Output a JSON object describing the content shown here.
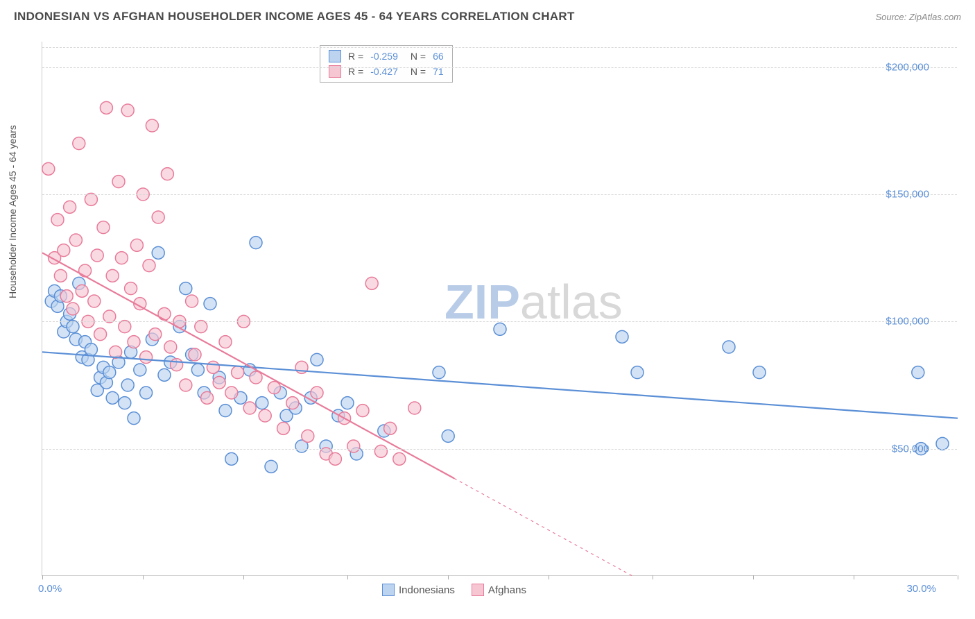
{
  "header": {
    "title": "INDONESIAN VS AFGHAN HOUSEHOLDER INCOME AGES 45 - 64 YEARS CORRELATION CHART",
    "source": "Source: ZipAtlas.com"
  },
  "chart": {
    "type": "scatter",
    "y_label": "Householder Income Ages 45 - 64 years",
    "watermark_a": "ZIP",
    "watermark_b": "atlas",
    "xlim": [
      0,
      30
    ],
    "ylim": [
      0,
      210000
    ],
    "x_tick_positions_pct": [
      0,
      3.3,
      6.6,
      10,
      13.3,
      16.6,
      20,
      23.3,
      26.6,
      30
    ],
    "x_range_labels": {
      "min": "0.0%",
      "max": "30.0%"
    },
    "y_ticks": [
      {
        "value": 50000,
        "label": "$50,000"
      },
      {
        "value": 100000,
        "label": "$100,000"
      },
      {
        "value": 150000,
        "label": "$150,000"
      },
      {
        "value": 200000,
        "label": "$200,000"
      }
    ],
    "grid_color": "#d8d8d8",
    "axis_color": "#cccccc",
    "background_color": "#ffffff",
    "point_radius": 9,
    "point_fill_opacity": 0.35,
    "point_stroke_width": 1.5,
    "series": [
      {
        "name": "Indonesians",
        "color": "#5b8fd6",
        "fill": "#bcd4f0",
        "R": "-0.259",
        "N": "66",
        "trendline": {
          "x1": 0,
          "y1": 88000,
          "x2": 30,
          "y2": 62000,
          "stroke_width": 2.2,
          "dash_after_x": null
        },
        "points": [
          [
            0.3,
            108000
          ],
          [
            0.4,
            112000
          ],
          [
            0.5,
            106000
          ],
          [
            0.6,
            110000
          ],
          [
            0.7,
            96000
          ],
          [
            0.8,
            100000
          ],
          [
            0.9,
            103000
          ],
          [
            1.0,
            98000
          ],
          [
            1.1,
            93000
          ],
          [
            1.2,
            115000
          ],
          [
            1.3,
            86000
          ],
          [
            1.4,
            92000
          ],
          [
            1.5,
            85000
          ],
          [
            1.6,
            89000
          ],
          [
            1.8,
            73000
          ],
          [
            1.9,
            78000
          ],
          [
            2.0,
            82000
          ],
          [
            2.1,
            76000
          ],
          [
            2.2,
            80000
          ],
          [
            2.3,
            70000
          ],
          [
            2.5,
            84000
          ],
          [
            2.7,
            68000
          ],
          [
            2.8,
            75000
          ],
          [
            2.9,
            88000
          ],
          [
            3.0,
            62000
          ],
          [
            3.2,
            81000
          ],
          [
            3.4,
            72000
          ],
          [
            3.6,
            93000
          ],
          [
            3.8,
            127000
          ],
          [
            4.0,
            79000
          ],
          [
            4.2,
            84000
          ],
          [
            4.5,
            98000
          ],
          [
            4.7,
            113000
          ],
          [
            4.9,
            87000
          ],
          [
            5.1,
            81000
          ],
          [
            5.3,
            72000
          ],
          [
            5.5,
            107000
          ],
          [
            5.8,
            78000
          ],
          [
            6.0,
            65000
          ],
          [
            6.2,
            46000
          ],
          [
            6.5,
            70000
          ],
          [
            6.8,
            81000
          ],
          [
            7.0,
            131000
          ],
          [
            7.2,
            68000
          ],
          [
            7.5,
            43000
          ],
          [
            7.8,
            72000
          ],
          [
            8.0,
            63000
          ],
          [
            8.3,
            66000
          ],
          [
            8.5,
            51000
          ],
          [
            8.8,
            70000
          ],
          [
            9.0,
            85000
          ],
          [
            9.3,
            51000
          ],
          [
            9.7,
            63000
          ],
          [
            10.0,
            68000
          ],
          [
            10.3,
            48000
          ],
          [
            11.2,
            57000
          ],
          [
            13.0,
            80000
          ],
          [
            13.3,
            55000
          ],
          [
            15.0,
            97000
          ],
          [
            19.0,
            94000
          ],
          [
            19.5,
            80000
          ],
          [
            22.5,
            90000
          ],
          [
            23.5,
            80000
          ],
          [
            28.7,
            80000
          ],
          [
            28.8,
            50000
          ],
          [
            29.5,
            52000
          ]
        ]
      },
      {
        "name": "Afghans",
        "color": "#e87b9a",
        "fill": "#f6c6d3",
        "R": "-0.427",
        "N": "71",
        "trendline": {
          "x1": 0,
          "y1": 127000,
          "x2": 30,
          "y2": -70000,
          "stroke_width": 2.2,
          "dash_after_x": 13.5
        },
        "points": [
          [
            0.2,
            160000
          ],
          [
            0.4,
            125000
          ],
          [
            0.5,
            140000
          ],
          [
            0.6,
            118000
          ],
          [
            0.7,
            128000
          ],
          [
            0.8,
            110000
          ],
          [
            0.9,
            145000
          ],
          [
            1.0,
            105000
          ],
          [
            1.1,
            132000
          ],
          [
            1.2,
            170000
          ],
          [
            1.3,
            112000
          ],
          [
            1.4,
            120000
          ],
          [
            1.5,
            100000
          ],
          [
            1.6,
            148000
          ],
          [
            1.7,
            108000
          ],
          [
            1.8,
            126000
          ],
          [
            1.9,
            95000
          ],
          [
            2.0,
            137000
          ],
          [
            2.1,
            184000
          ],
          [
            2.2,
            102000
          ],
          [
            2.3,
            118000
          ],
          [
            2.4,
            88000
          ],
          [
            2.5,
            155000
          ],
          [
            2.6,
            125000
          ],
          [
            2.7,
            98000
          ],
          [
            2.8,
            183000
          ],
          [
            2.9,
            113000
          ],
          [
            3.0,
            92000
          ],
          [
            3.1,
            130000
          ],
          [
            3.2,
            107000
          ],
          [
            3.3,
            150000
          ],
          [
            3.4,
            86000
          ],
          [
            3.5,
            122000
          ],
          [
            3.6,
            177000
          ],
          [
            3.7,
            95000
          ],
          [
            3.8,
            141000
          ],
          [
            4.0,
            103000
          ],
          [
            4.1,
            158000
          ],
          [
            4.2,
            90000
          ],
          [
            4.4,
            83000
          ],
          [
            4.5,
            100000
          ],
          [
            4.7,
            75000
          ],
          [
            4.9,
            108000
          ],
          [
            5.0,
            87000
          ],
          [
            5.2,
            98000
          ],
          [
            5.4,
            70000
          ],
          [
            5.6,
            82000
          ],
          [
            5.8,
            76000
          ],
          [
            6.0,
            92000
          ],
          [
            6.2,
            72000
          ],
          [
            6.4,
            80000
          ],
          [
            6.6,
            100000
          ],
          [
            6.8,
            66000
          ],
          [
            7.0,
            78000
          ],
          [
            7.3,
            63000
          ],
          [
            7.6,
            74000
          ],
          [
            7.9,
            58000
          ],
          [
            8.2,
            68000
          ],
          [
            8.5,
            82000
          ],
          [
            8.7,
            55000
          ],
          [
            9.0,
            72000
          ],
          [
            9.3,
            48000
          ],
          [
            9.6,
            46000
          ],
          [
            9.9,
            62000
          ],
          [
            10.2,
            51000
          ],
          [
            10.5,
            65000
          ],
          [
            10.8,
            115000
          ],
          [
            11.1,
            49000
          ],
          [
            11.4,
            58000
          ],
          [
            11.7,
            46000
          ],
          [
            12.2,
            66000
          ]
        ]
      }
    ],
    "legend_top": {
      "r_label": "R =",
      "n_label": "N ="
    },
    "legend_bottom": {
      "items": [
        "Indonesians",
        "Afghans"
      ]
    }
  }
}
